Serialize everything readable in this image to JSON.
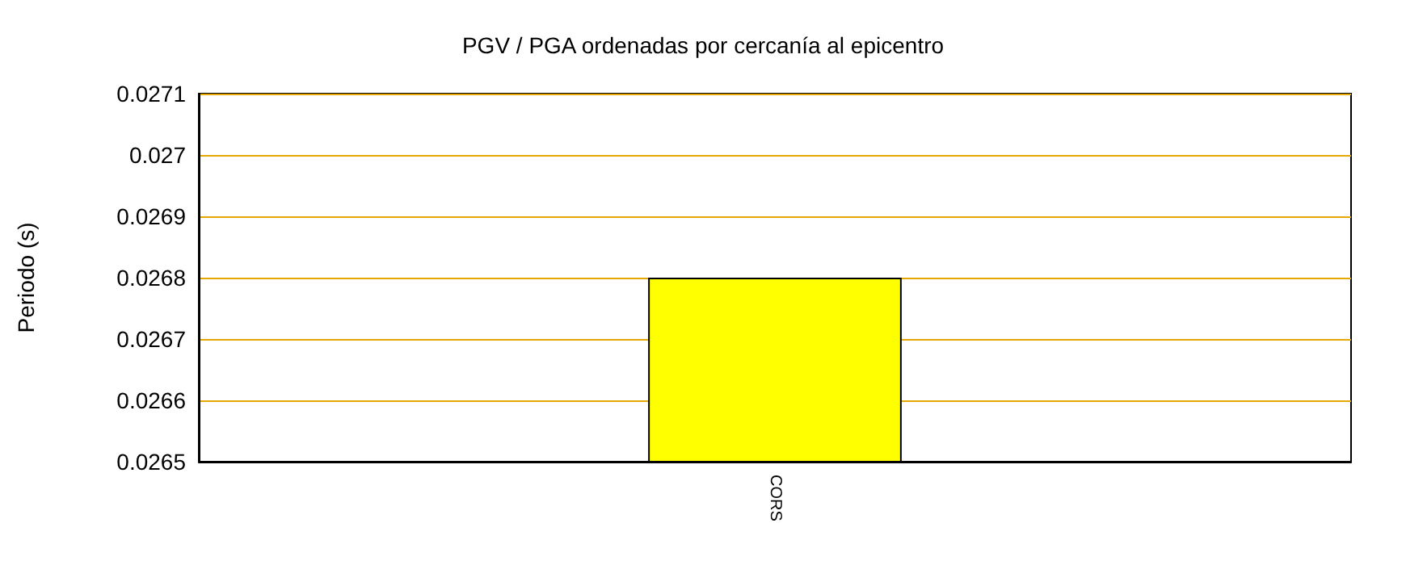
{
  "chart_data": {
    "type": "bar",
    "title": "PGV / PGA ordenadas por cercanía al epicentro",
    "ylabel": "Periodo (s)",
    "categories": [
      "CORS"
    ],
    "values": [
      0.0268
    ],
    "color": "#ffff00",
    "ylim": [
      0.0265,
      0.0271
    ],
    "yticks": [
      0.0265,
      0.0266,
      0.0267,
      0.0268,
      0.0269,
      0.027,
      0.0271
    ],
    "grid": "y"
  }
}
